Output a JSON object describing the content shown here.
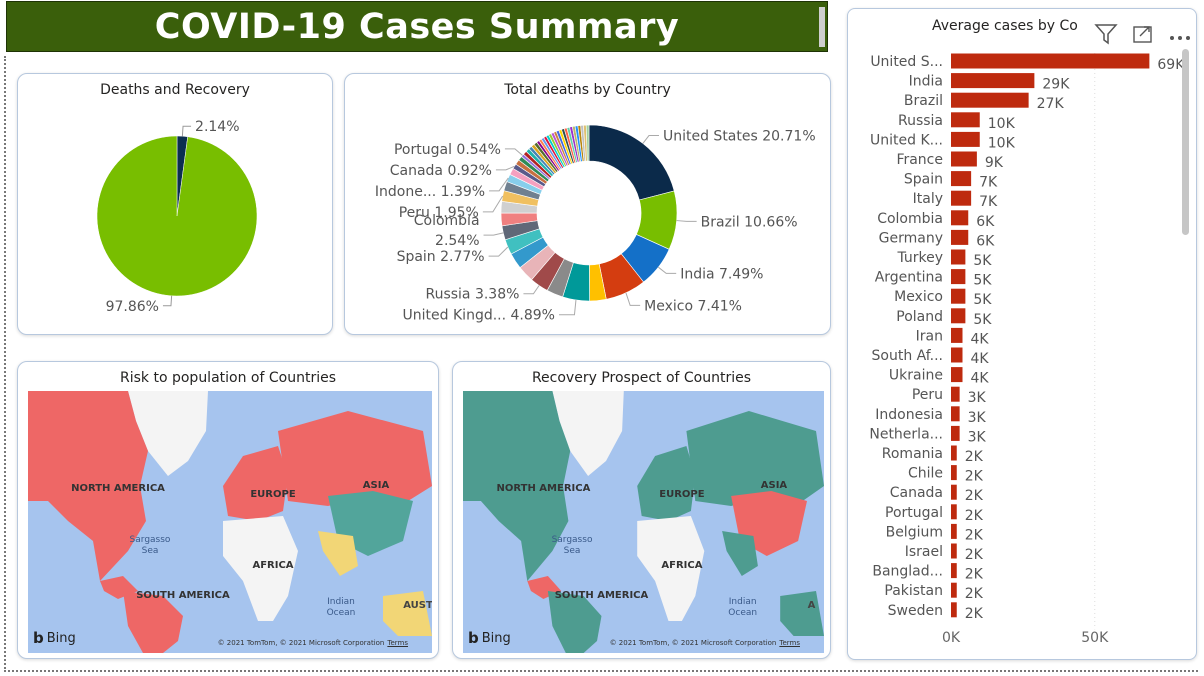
{
  "page_title": "COVID-19 Cases Summary",
  "colors": {
    "title_bg": "#3a5f0b",
    "bar": "#be2a0e",
    "green": "#78be00",
    "navy": "#0b2e50",
    "map_water": "#a6c4ee",
    "map_red": "#ee6766",
    "map_teal": "#4e9c90"
  },
  "icons": {
    "filter": "filter-icon",
    "focus": "focus-mode-icon",
    "more": "more-options-icon",
    "bing": "bing-logo"
  },
  "chart_data": [
    {
      "type": "pie",
      "title": "Deaths and Recovery",
      "slices": [
        {
          "label": "2.14%",
          "value": 2.14,
          "color": "#0b2e50"
        },
        {
          "label": "97.86%",
          "value": 97.86,
          "color": "#78be00"
        }
      ]
    },
    {
      "type": "pie",
      "title": "Total deaths by Country",
      "donut": true,
      "slices": [
        {
          "label": "United States 20.71%",
          "value": 20.71,
          "color": "#0b2a4a"
        },
        {
          "label": "Brazil 10.66%",
          "value": 10.66,
          "color": "#78be00"
        },
        {
          "label": "India 7.49%",
          "value": 7.49,
          "color": "#1470c8"
        },
        {
          "label": "Mexico 7.41%",
          "value": 7.41,
          "color": "#d43d10"
        },
        {
          "label": "",
          "value": 3.0,
          "color": "#ffc000"
        },
        {
          "label": "United Kingd... 4.89%",
          "value": 4.89,
          "color": "#009999"
        },
        {
          "label": "",
          "value": 3.0,
          "color": "#8a8a8a"
        },
        {
          "label": "Russia 3.38%",
          "value": 3.38,
          "color": "#a04a4a"
        },
        {
          "label": "",
          "value": 3.0,
          "color": "#e8b4b8"
        },
        {
          "label": "",
          "value": 2.9,
          "color": "#3399cc"
        },
        {
          "label": "Spain 2.77%",
          "value": 2.77,
          "color": "#40c0c0"
        },
        {
          "label": "Colombia 2.54%",
          "value": 2.54,
          "color": "#606878"
        },
        {
          "label": "",
          "value": 2.3,
          "color": "#f08080"
        },
        {
          "label": "",
          "value": 2.1,
          "color": "#d0d0d0"
        },
        {
          "label": "Peru 1.95%",
          "value": 1.95,
          "color": "#f0c060"
        },
        {
          "label": "",
          "value": 1.7,
          "color": "#708090"
        },
        {
          "label": "Indone... 1.39%",
          "value": 1.39,
          "color": "#87ceeb"
        },
        {
          "label": "",
          "value": 1.2,
          "color": "#f4a0c0"
        },
        {
          "label": "Canada 0.92%",
          "value": 0.92,
          "color": "#5a5a8a"
        },
        {
          "label": "",
          "value": 0.9,
          "color": "#c87040"
        },
        {
          "label": "",
          "value": 0.8,
          "color": "#2e8b57"
        },
        {
          "label": "Portugal 0.54%",
          "value": 0.54,
          "color": "#9370db"
        },
        {
          "label": "",
          "value": 0.7,
          "color": "#b22222"
        },
        {
          "label": "",
          "value": 0.7,
          "color": "#20b2aa"
        },
        {
          "label": "",
          "value": 0.6,
          "color": "#4682b4"
        },
        {
          "label": "",
          "value": 0.6,
          "color": "#daa520"
        },
        {
          "label": "",
          "value": 0.6,
          "color": "#556b2f"
        },
        {
          "label": "",
          "value": 0.5,
          "color": "#8b008b"
        },
        {
          "label": "",
          "value": 0.5,
          "color": "#ff7f50"
        },
        {
          "label": "",
          "value": 0.5,
          "color": "#6495ed"
        },
        {
          "label": "",
          "value": 0.5,
          "color": "#dc143c"
        },
        {
          "label": "",
          "value": 0.5,
          "color": "#00ced1"
        },
        {
          "label": "",
          "value": 0.5,
          "color": "#9acd32"
        },
        {
          "label": "",
          "value": 0.5,
          "color": "#ba55d3"
        },
        {
          "label": "",
          "value": 0.5,
          "color": "#cd853f"
        },
        {
          "label": "",
          "value": 0.5,
          "color": "#4169e1"
        },
        {
          "label": "",
          "value": 0.5,
          "color": "#ffd700"
        },
        {
          "label": "",
          "value": 0.5,
          "color": "#2f4f4f"
        },
        {
          "label": "",
          "value": 0.5,
          "color": "#ff6347"
        },
        {
          "label": "",
          "value": 0.5,
          "color": "#66cdaa"
        },
        {
          "label": "",
          "value": 0.5,
          "color": "#9932cc"
        },
        {
          "label": "",
          "value": 0.5,
          "color": "#bdb76b"
        },
        {
          "label": "",
          "value": 0.5,
          "color": "#1e90ff"
        },
        {
          "label": "",
          "value": 0.5,
          "color": "#b8860b"
        },
        {
          "label": "",
          "value": 0.5,
          "color": "#c0c0c0"
        },
        {
          "label": "",
          "value": 0.5,
          "color": "#e0c070"
        },
        {
          "label": "",
          "value": 0.5,
          "color": "#a0d0a0"
        }
      ]
    },
    {
      "type": "bar",
      "orientation": "horizontal",
      "title": "Average cases by Co",
      "categories": [
        "United S...",
        "India",
        "Brazil",
        "Russia",
        "United K...",
        "France",
        "Spain",
        "Italy",
        "Colombia",
        "Germany",
        "Turkey",
        "Argentina",
        "Mexico",
        "Poland",
        "Iran",
        "South Af...",
        "Ukraine",
        "Peru",
        "Indonesia",
        "Netherla...",
        "Romania",
        "Chile",
        "Canada",
        "Portugal",
        "Belgium",
        "Israel",
        "Banglad...",
        "Pakistan",
        "Sweden"
      ],
      "values": [
        69000,
        29000,
        27000,
        10000,
        10000,
        9000,
        7000,
        7000,
        6000,
        6000,
        5000,
        5000,
        5000,
        5000,
        4000,
        4000,
        4000,
        3000,
        3000,
        3000,
        2000,
        2000,
        2000,
        2000,
        2000,
        2000,
        2000,
        2000,
        2000
      ],
      "data_labels": [
        "69K",
        "29K",
        "27K",
        "10K",
        "10K",
        "9K",
        "7K",
        "7K",
        "6K",
        "6K",
        "5K",
        "5K",
        "5K",
        "5K",
        "4K",
        "4K",
        "4K",
        "3K",
        "3K",
        "3K",
        "2K",
        "2K",
        "2K",
        "2K",
        "2K",
        "2K",
        "2K",
        "2K",
        "2K"
      ],
      "xlim": [
        0,
        80000
      ],
      "xticks": [
        0,
        50000
      ],
      "xtick_labels": [
        "0K",
        "50K"
      ]
    }
  ],
  "maps": [
    {
      "title": "Risk to population of Countries",
      "labels": {
        "na": "NORTH AMERICA",
        "eu": "EUROPE",
        "as": "ASIA",
        "af": "AFRICA",
        "sa": "SOUTH AMERICA",
        "sea1": "Sargasso",
        "sea2": "Sea",
        "oc1": "Indian",
        "oc2": "Ocean",
        "au": "AUST"
      },
      "bing": "Bing",
      "copyright": "© 2021 TomTom, © 2021 Microsoft Corporation",
      "terms": "Terms"
    },
    {
      "title": "Recovery Prospect of Countries",
      "labels": {
        "na": "NORTH AMERICA",
        "eu": "EUROPE",
        "as": "ASIA",
        "af": "AFRICA",
        "sa": "SOUTH AMERICA",
        "sea1": "Sargasso",
        "sea2": "Sea",
        "oc1": "Indian",
        "oc2": "Ocean",
        "au": "A"
      },
      "bing": "Bing",
      "copyright": "© 2021 TomTom, © 2021 Microsoft Corporation",
      "terms": "Terms"
    }
  ]
}
